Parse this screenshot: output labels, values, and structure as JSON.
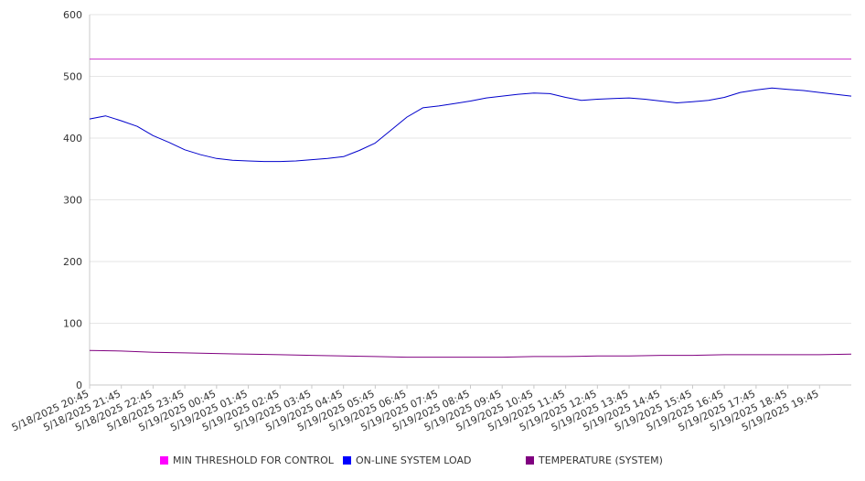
{
  "chart_data": {
    "type": "line",
    "title": "",
    "xlabel": "",
    "ylabel": "",
    "ylim": [
      0,
      600
    ],
    "yticks": [
      0,
      100,
      200,
      300,
      400,
      500,
      600
    ],
    "grid": "horizontal",
    "legend_position": "bottom",
    "x_range": [
      "5/18/2025 20:45",
      "5/19/2025 20:45"
    ],
    "categories": [
      "5/18/2025 20:45",
      "5/18/2025 21:45",
      "5/18/2025 22:45",
      "5/18/2025 23:45",
      "5/19/2025 00:45",
      "5/19/2025 01:45",
      "5/19/2025 02:45",
      "5/19/2025 03:45",
      "5/19/2025 04:45",
      "5/19/2025 05:45",
      "5/19/2025 06:45",
      "5/19/2025 07:45",
      "5/19/2025 08:45",
      "5/19/2025 09:45",
      "5/19/2025 10:45",
      "5/19/2025 11:45",
      "5/19/2025 12:45",
      "5/19/2025 13:45",
      "5/19/2025 14:45",
      "5/19/2025 15:45",
      "5/19/2025 16:45",
      "5/19/2025 17:45",
      "5/19/2025 18:45",
      "5/19/2025 19:45"
    ],
    "series": [
      {
        "name": "MIN THRESHOLD FOR CONTROL",
        "color": "#cc33cc",
        "swatch_color": "#ff00ff",
        "x": [
          "5/18/2025 20:45",
          "5/19/2025 20:45"
        ],
        "values": [
          528,
          528
        ]
      },
      {
        "name": "ON-LINE SYSTEM LOAD",
        "color": "#0000cc",
        "swatch_color": "#0000ff",
        "x": [
          "5/18/2025 20:45",
          "5/18/2025 21:15",
          "5/18/2025 21:45",
          "5/18/2025 22:15",
          "5/18/2025 22:45",
          "5/18/2025 23:15",
          "5/18/2025 23:45",
          "5/19/2025 00:15",
          "5/19/2025 00:45",
          "5/19/2025 01:15",
          "5/19/2025 01:45",
          "5/19/2025 02:15",
          "5/19/2025 02:45",
          "5/19/2025 03:15",
          "5/19/2025 03:45",
          "5/19/2025 04:15",
          "5/19/2025 04:45",
          "5/19/2025 05:15",
          "5/19/2025 05:45",
          "5/19/2025 06:15",
          "5/19/2025 06:45",
          "5/19/2025 07:15",
          "5/19/2025 07:45",
          "5/19/2025 08:15",
          "5/19/2025 08:45",
          "5/19/2025 09:15",
          "5/19/2025 09:45",
          "5/19/2025 10:15",
          "5/19/2025 10:45",
          "5/19/2025 11:15",
          "5/19/2025 11:45",
          "5/19/2025 12:15",
          "5/19/2025 12:45",
          "5/19/2025 13:15",
          "5/19/2025 13:45",
          "5/19/2025 14:15",
          "5/19/2025 14:45",
          "5/19/2025 15:15",
          "5/19/2025 15:45",
          "5/19/2025 16:15",
          "5/19/2025 16:45",
          "5/19/2025 17:15",
          "5/19/2025 17:45",
          "5/19/2025 18:15",
          "5/19/2025 18:45",
          "5/19/2025 19:15",
          "5/19/2025 19:45",
          "5/19/2025 20:15",
          "5/19/2025 20:45"
        ],
        "values": [
          431,
          436,
          428,
          419,
          404,
          393,
          381,
          373,
          367,
          364,
          363,
          362,
          362,
          363,
          365,
          367,
          370,
          380,
          392,
          413,
          434,
          449,
          452,
          456,
          460,
          465,
          468,
          471,
          473,
          472,
          466,
          461,
          463,
          464,
          465,
          463,
          460,
          457,
          459,
          461,
          466,
          474,
          478,
          481,
          479,
          477,
          474,
          471,
          468
        ]
      },
      {
        "name": "TEMPERATURE (SYSTEM)",
        "color": "#800080",
        "swatch_color": "#800080",
        "x": [
          "5/18/2025 20:45",
          "5/18/2025 21:45",
          "5/18/2025 22:45",
          "5/18/2025 23:45",
          "5/19/2025 00:45",
          "5/19/2025 01:45",
          "5/19/2025 02:45",
          "5/19/2025 03:45",
          "5/19/2025 04:45",
          "5/19/2025 05:45",
          "5/19/2025 06:45",
          "5/19/2025 07:45",
          "5/19/2025 08:45",
          "5/19/2025 09:45",
          "5/19/2025 10:45",
          "5/19/2025 11:45",
          "5/19/2025 12:45",
          "5/19/2025 13:45",
          "5/19/2025 14:45",
          "5/19/2025 15:45",
          "5/19/2025 16:45",
          "5/19/2025 17:45",
          "5/19/2025 18:45",
          "5/19/2025 19:45",
          "5/19/2025 20:45"
        ],
        "values": [
          56,
          55,
          53,
          52,
          51,
          50,
          49,
          48,
          47,
          46,
          45,
          45,
          45,
          45,
          46,
          46,
          47,
          47,
          48,
          48,
          49,
          49,
          49,
          49,
          50
        ]
      }
    ]
  },
  "legend": [
    {
      "label": "MIN THRESHOLD FOR CONTROL",
      "color": "#ff00ff"
    },
    {
      "label": "ON-LINE SYSTEM LOAD",
      "color": "#0000ff"
    },
    {
      "label": "TEMPERATURE (SYSTEM)",
      "color": "#800080"
    }
  ]
}
